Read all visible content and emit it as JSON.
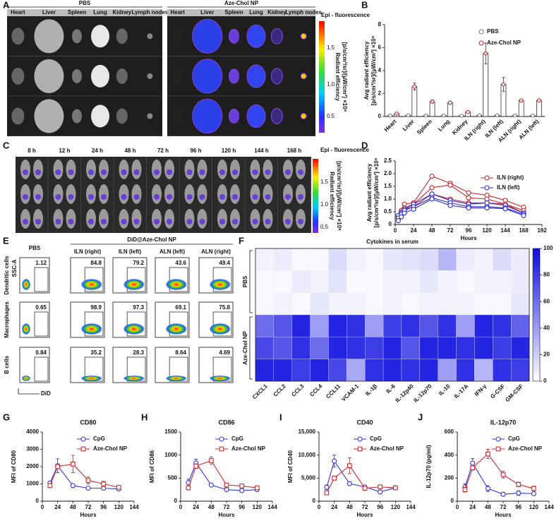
{
  "figure": {
    "panel_labels": [
      "A",
      "B",
      "C",
      "D",
      "E",
      "F",
      "G",
      "H",
      "I",
      "J"
    ]
  },
  "panel_a": {
    "groups": [
      "PBS",
      "Aze-Chol NP"
    ],
    "organs": [
      "Heart",
      "Liver",
      "Spleen",
      "Lung",
      "Kidney",
      "Lymph nodes"
    ],
    "colorbar_title": "Epi - fluorescence",
    "colorbar_ticks": [
      "1.5",
      "1.0",
      "0.5"
    ],
    "colorbar_label": [
      "Radiant efficiency",
      "[p/s/cm²/sr]/[µW/cm²] ×10⁸"
    ]
  },
  "panel_c": {
    "times": [
      "8 h",
      "12 h",
      "24 h",
      "48 h",
      "72 h",
      "96 h",
      "120 h",
      "144 h",
      "168 h"
    ],
    "colorbar_title": "Epi - fluorescence",
    "colorbar_ticks": [
      "1.5",
      "1.0",
      "0.5"
    ],
    "colorbar_label": [
      "Radiant efficiency",
      "[p/s/cm²/sr]/[µW/cm²] ×10⁸"
    ]
  },
  "panel_e": {
    "title": "DiD@Aze-Chol NP",
    "columns": [
      "PBS",
      "ILN (right)",
      "ILN (left)",
      "ALN (left)",
      "ALN (right)"
    ],
    "row_labels": [
      "Dendritic cells",
      "Macrophages",
      "B cells"
    ],
    "percentages": [
      [
        "1.12",
        "84.8",
        "79.2",
        "43.6",
        "49.4"
      ],
      [
        "0.65",
        "98.9",
        "97.3",
        "69.1",
        "75.8"
      ],
      [
        "0.84",
        "35.2",
        "28.3",
        "8.64",
        "4.69"
      ]
    ],
    "y_axis": "SSC-A",
    "x_axis": "DiD"
  },
  "chart_data": [
    {
      "type": "bar",
      "ylabel": [
        "Avg radiant efficiency",
        "[p/s/cm²/sr]/[µW/cm²] ×10⁸"
      ],
      "categories": [
        "Heart",
        "Liver",
        "Spleen",
        "Lung",
        "Kidney",
        "ILN (right)",
        "ILN (left)",
        "ALN (right)",
        "ALN (left)"
      ],
      "ylim": [
        0,
        8
      ],
      "yticks": [
        0,
        2,
        4,
        6,
        8
      ],
      "series": [
        {
          "name": "PBS",
          "color": "#7f7f7f",
          "values": [
            0.08,
            0.1,
            0.08,
            0.08,
            0.07,
            0.1,
            0.1,
            0.08,
            0.08
          ]
        },
        {
          "name": "Aze-Chol NP",
          "color": "#d62728",
          "values": [
            0.25,
            2.6,
            1.3,
            1.2,
            0.4,
            5.5,
            2.8,
            1.4,
            1.4
          ],
          "errors": [
            0.05,
            0.3,
            0.15,
            0.15,
            0.05,
            0.9,
            0.6,
            0.1,
            0.1
          ]
        }
      ]
    },
    {
      "type": "line",
      "xlabel": "Hours",
      "ylabel": [
        "Avg radiant efficiency",
        "[p/s/cm²/sr]/[µW/cm²] ×10⁸"
      ],
      "x": [
        4,
        8,
        12,
        24,
        48,
        72,
        96,
        120,
        144,
        168
      ],
      "xlim": [
        0,
        192
      ],
      "xticks": [
        0,
        24,
        48,
        72,
        96,
        120,
        144,
        168,
        192
      ],
      "ylim": [
        0,
        2.5
      ],
      "yticks": [
        0,
        0.5,
        {
          "value": 1,
          "label": "1.0"
        },
        1.5,
        {
          "value": 2,
          "label": "2.0"
        },
        2.5
      ],
      "series": [
        {
          "name": "ILN (right)",
          "color": "#c8282d",
          "marker": "circle",
          "replicates": [
            [
              0.35,
              0.55,
              0.8,
              0.85,
              1.9,
              1.62,
              1.25,
              1.15,
              0.95,
              0.68
            ],
            [
              0.3,
              0.5,
              0.65,
              0.8,
              1.45,
              1.55,
              1.05,
              1.0,
              0.8,
              0.55
            ],
            [
              0.25,
              0.45,
              0.6,
              0.7,
              1.2,
              1.0,
              0.85,
              0.85,
              0.8,
              0.45
            ]
          ]
        },
        {
          "name": "ILN (left)",
          "color": "#2b2bd6",
          "marker": "circle",
          "replicates": [
            [
              0.35,
              0.45,
              0.6,
              0.8,
              1.2,
              0.95,
              0.8,
              0.85,
              0.75,
              0.45
            ],
            [
              0.25,
              0.4,
              0.55,
              0.7,
              1.05,
              0.85,
              0.7,
              0.7,
              0.65,
              0.4
            ],
            [
              0.15,
              0.3,
              0.45,
              0.6,
              1.0,
              0.75,
              0.65,
              0.65,
              0.62,
              0.35
            ]
          ]
        }
      ]
    },
    {
      "type": "heatmap",
      "title": "Cytokines in serum",
      "categories": [
        "CXCL1",
        "CCL2",
        "CCL3",
        "CCL4",
        "CCL11",
        "VCAM-1",
        "IL-1β",
        "IL-6",
        "IL-12p40",
        "IL-12p70",
        "IL-10",
        "IL-17A",
        "IFN-γ",
        "G-CSF",
        "GM-CSF"
      ],
      "zlim": [
        0,
        100
      ],
      "zticks": [
        0,
        20,
        40,
        60,
        80,
        100
      ],
      "series": [
        {
          "name": "PBS",
          "values": [
            [
              5,
              8,
              3,
              3,
              15,
              5,
              3,
              10,
              12,
              15,
              30,
              8,
              5,
              15,
              8
            ],
            [
              3,
              3,
              8,
              5,
              12,
              3,
              3,
              5,
              5,
              10,
              5,
              3,
              5,
              5,
              8
            ],
            [
              3,
              5,
              3,
              10,
              5,
              5,
              3,
              5,
              3,
              5,
              5,
              5,
              3,
              3,
              10
            ]
          ]
        },
        {
          "name": "Aze-Chol NP",
          "values": [
            [
              60,
              70,
              90,
              40,
              90,
              85,
              40,
              80,
              85,
              70,
              85,
              40,
              90,
              85,
              65
            ],
            [
              75,
              70,
              85,
              60,
              90,
              85,
              80,
              90,
              70,
              90,
              90,
              85,
              90,
              80,
              90
            ],
            [
              90,
              90,
              80,
              90,
              75,
              35,
              85,
              90,
              85,
              90,
              40,
              85,
              30,
              85,
              80
            ]
          ]
        }
      ]
    },
    {
      "type": "line",
      "title": "CD80",
      "xlabel": "Hours",
      "ylabel": "MFI of CD80",
      "x": [
        12,
        24,
        48,
        72,
        96,
        120
      ],
      "xlim": [
        0,
        144
      ],
      "xticks": [
        0,
        24,
        48,
        72,
        96,
        120,
        144
      ],
      "ylim": [
        0,
        4000
      ],
      "yticks": [
        0,
        1000,
        2000,
        3000,
        4000
      ],
      "series": [
        {
          "name": "CpG",
          "color": "#3636e0",
          "marker": "circle",
          "values": [
            1050,
            2050,
            900,
            750,
            750,
            700
          ],
          "errors": [
            80,
            400,
            50,
            50,
            50,
            40
          ]
        },
        {
          "name": "Aze-Chol NP",
          "color": "#d62728",
          "marker": "square",
          "values": [
            900,
            2000,
            2150,
            1200,
            1000,
            800
          ],
          "errors": [
            80,
            100,
            500,
            200,
            150,
            80
          ]
        }
      ]
    },
    {
      "type": "line",
      "title": "CD86",
      "xlabel": "Hours",
      "ylabel": "MFI of CD86",
      "x": [
        12,
        24,
        48,
        72,
        96,
        120
      ],
      "xlim": [
        0,
        144
      ],
      "xticks": [
        0,
        24,
        48,
        72,
        96,
        120,
        144
      ],
      "ylim": [
        0,
        1500
      ],
      "yticks": [
        0,
        500,
        1000,
        1500
      ],
      "series": [
        {
          "name": "CpG",
          "color": "#3636e0",
          "marker": "circle",
          "values": [
            400,
            830,
            350,
            250,
            230,
            250
          ],
          "errors": [
            80,
            80,
            30,
            20,
            20,
            20
          ]
        },
        {
          "name": "Aze-Chol NP",
          "color": "#d62728",
          "marker": "square",
          "values": [
            290,
            760,
            880,
            350,
            330,
            290
          ],
          "errors": [
            30,
            50,
            80,
            40,
            30,
            30
          ]
        }
      ]
    },
    {
      "type": "line",
      "title": "CD40",
      "xlabel": "Hours",
      "ylabel": "MFI of CD40",
      "x": [
        12,
        24,
        48,
        72,
        96,
        120
      ],
      "xlim": [
        0,
        144
      ],
      "xticks": [
        0,
        24,
        48,
        72,
        96,
        120,
        144
      ],
      "ylim": [
        0,
        15000
      ],
      "yticks": [
        0,
        {
          "value": 5000,
          "label": "5,000"
        },
        {
          "value": 10000,
          "label": "10,000"
        },
        {
          "value": 15000,
          "label": "15,000"
        }
      ],
      "series": [
        {
          "name": "CpG",
          "color": "#3636e0",
          "marker": "circle",
          "values": [
            3000,
            8700,
            3800,
            3100,
            2000,
            2900
          ],
          "errors": [
            500,
            1300,
            300,
            200,
            300,
            300
          ]
        },
        {
          "name": "Aze-Chol NP",
          "color": "#d62728",
          "marker": "square",
          "values": [
            1800,
            5000,
            7700,
            2800,
            3100,
            2900
          ],
          "errors": [
            200,
            400,
            1700,
            400,
            400,
            300
          ]
        }
      ]
    },
    {
      "type": "line",
      "title": "IL-12p70",
      "xlabel": "Hours",
      "ylabel": "IL-12p70 (pg/ml)",
      "x": [
        12,
        24,
        48,
        72,
        96,
        120
      ],
      "xlim": [
        0,
        144
      ],
      "xticks": [
        0,
        24,
        48,
        72,
        96,
        120,
        144
      ],
      "ylim": [
        0,
        600
      ],
      "yticks": [
        0,
        200,
        400,
        600
      ],
      "series": [
        {
          "name": "CpG",
          "color": "#3636e0",
          "marker": "circle",
          "values": [
            120,
            330,
            110,
            60,
            70,
            65
          ],
          "errors": [
            30,
            40,
            25,
            15,
            20,
            15
          ]
        },
        {
          "name": "Aze-Chol NP",
          "color": "#d62728",
          "marker": "square",
          "values": [
            100,
            290,
            410,
            230,
            145,
            110
          ],
          "errors": [
            20,
            20,
            40,
            30,
            20,
            20
          ]
        }
      ]
    }
  ]
}
